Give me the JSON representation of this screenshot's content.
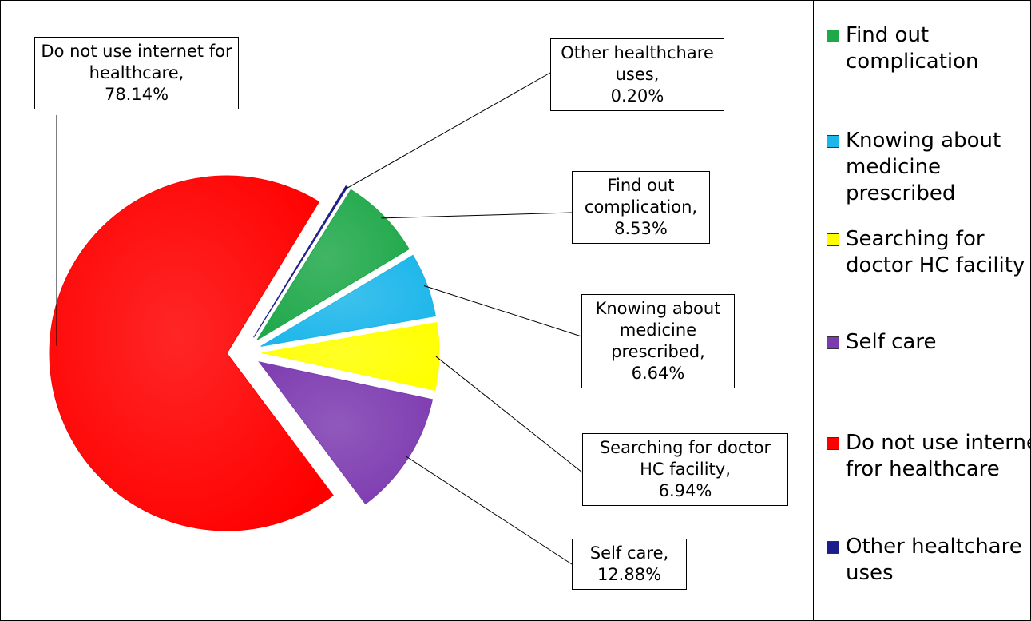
{
  "chart_data": {
    "type": "pie",
    "categories": [
      "Find out complication",
      "Knowing about medicine prescribed",
      "Searching for doctor HC facility",
      "Self care",
      "Do not use internet fror healthcare",
      "Other healtchare uses"
    ],
    "values": [
      8.53,
      6.64,
      6.94,
      12.88,
      78.14,
      0.2
    ],
    "value_labels": [
      "8.53%",
      "6.64%",
      "6.94%",
      "12.88%",
      "78.14%",
      "0.20%"
    ],
    "label_names": [
      "Find out complication,",
      "Knowing about medicine prescribed,",
      "Searching for doctor HC facility,",
      "Self care,",
      "Do not use internet for healthcare,",
      "Other healthchare uses,"
    ],
    "colors": [
      "#1fa84a",
      "#1cb6ea",
      "#ffff00",
      "#7d3bb0",
      "#ff0000",
      "#1c1c8c"
    ],
    "legend": "right"
  }
}
